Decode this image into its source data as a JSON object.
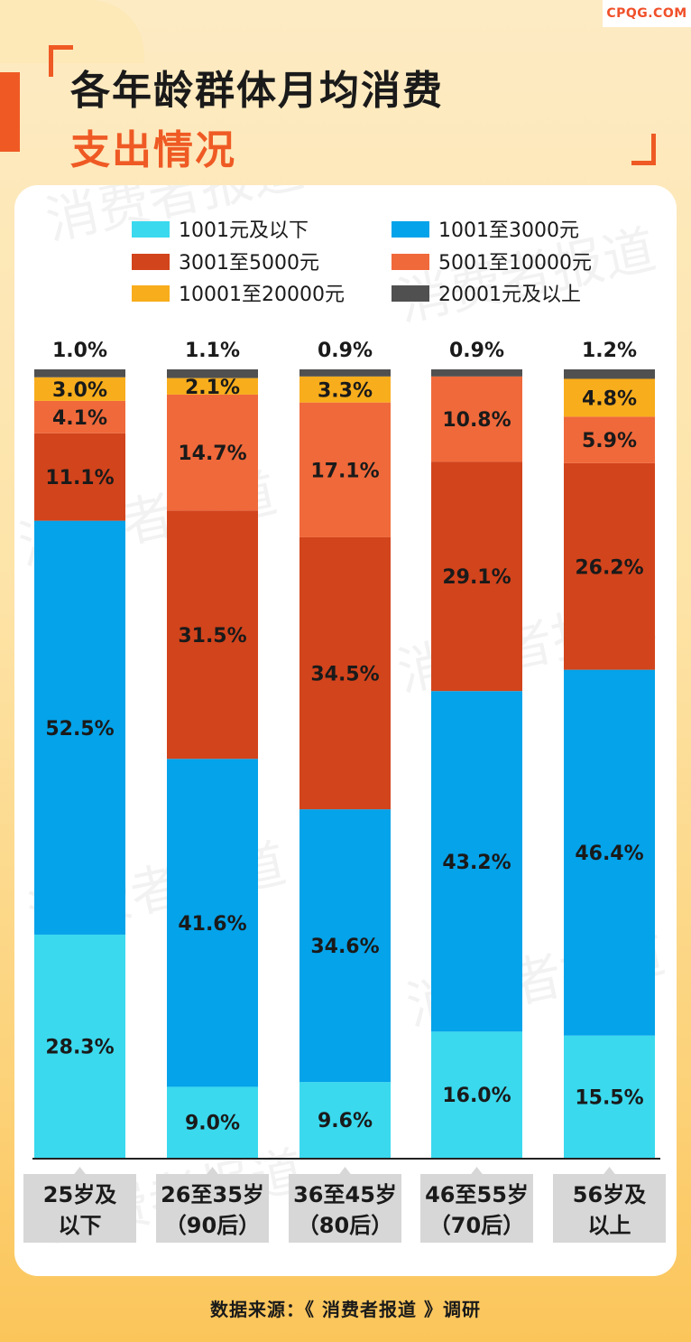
{
  "brand": "CPQG.COM",
  "title_line1": "各年龄群体月均消费",
  "title_line2": "支出情况",
  "source": "数据来源：《 消费者报道 》调研",
  "watermark": "消费者报道",
  "colors": {
    "accent": "#ef5a24",
    "axis": "#222222",
    "label_bg": "#d7d7d7"
  },
  "chart_data": {
    "type": "bar",
    "stacked": true,
    "categories": [
      [
        "25岁及",
        "以下"
      ],
      [
        "26至35岁",
        "（90后）"
      ],
      [
        "36至45岁",
        "（80后）"
      ],
      [
        "46至55岁",
        "（70后）"
      ],
      [
        "56岁及",
        "以上"
      ]
    ],
    "series": [
      {
        "name": "1001元及以下",
        "color": "#3ad9ee",
        "values": [
          28.3,
          9.0,
          9.6,
          16.0,
          15.5
        ]
      },
      {
        "name": "1001至3000元",
        "color": "#04a3ea",
        "values": [
          52.5,
          41.6,
          34.6,
          43.2,
          46.4
        ]
      },
      {
        "name": "3001至5000元",
        "color": "#d2441c",
        "values": [
          11.1,
          31.5,
          34.5,
          29.1,
          26.2
        ]
      },
      {
        "name": "5001至10000元",
        "color": "#f0693a",
        "values": [
          4.1,
          14.7,
          17.1,
          10.8,
          5.9
        ]
      },
      {
        "name": "10001至20000元",
        "color": "#f8ad1c",
        "values": [
          3.0,
          2.1,
          3.3,
          0.0,
          4.8
        ]
      },
      {
        "name": "20001元及以上",
        "color": "#505050",
        "values": [
          1.0,
          1.1,
          0.9,
          0.9,
          1.2
        ]
      }
    ],
    "unit": "%",
    "ylim": [
      0,
      100
    ],
    "legend_position": "top"
  }
}
